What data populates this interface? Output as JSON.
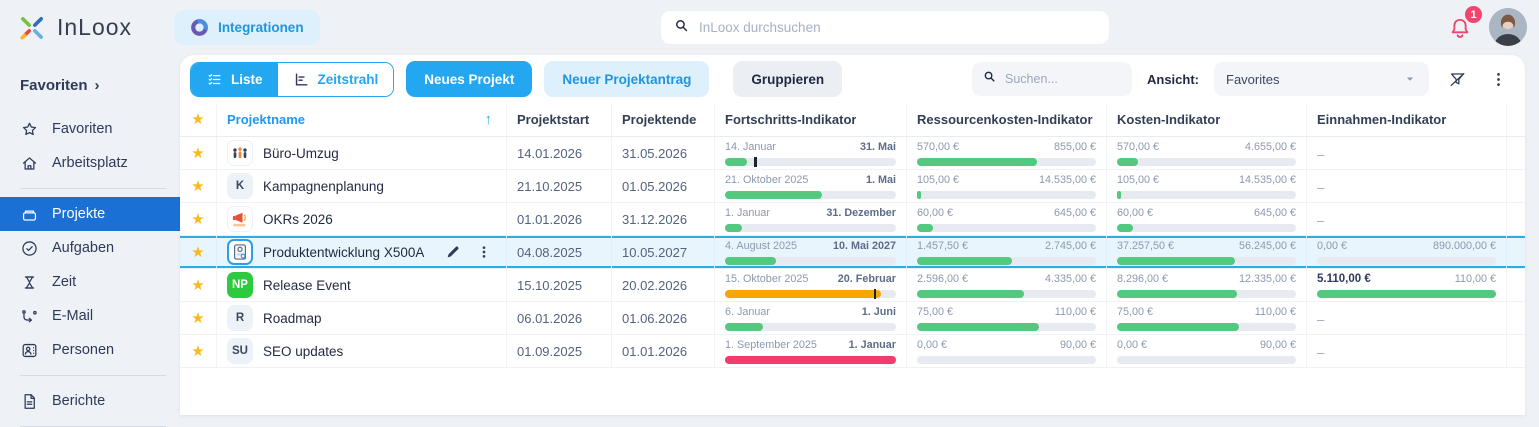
{
  "topbar": {
    "brand": "InLoox",
    "integrations_button": "Integrationen",
    "search_placeholder": "InLoox durchsuchen",
    "notifications_badge": "1"
  },
  "sidebar": {
    "section": "Favoriten",
    "section_chevron": "›",
    "items": [
      {
        "label": "Favoriten",
        "icon": "star"
      },
      {
        "label": "Arbeitsplatz",
        "icon": "home",
        "divider_after": true
      },
      {
        "label": "Projekte",
        "icon": "projects",
        "active": true
      },
      {
        "label": "Aufgaben",
        "icon": "check-circle"
      },
      {
        "label": "Zeit",
        "icon": "hourglass"
      },
      {
        "label": "E-Mail",
        "icon": "mail-flow"
      },
      {
        "label": "Personen",
        "icon": "person-card",
        "divider_after": true
      },
      {
        "label": "Berichte",
        "icon": "report",
        "divider_after": true
      }
    ]
  },
  "toolbar": {
    "views": [
      {
        "label": "Liste",
        "icon": "list",
        "active": true
      },
      {
        "label": "Zeitstrahl",
        "icon": "timeline",
        "active": false
      }
    ],
    "new_project": "Neues Projekt",
    "new_request": "Neuer Projektantrag",
    "group": "Gruppieren",
    "search_placeholder": "Suchen...",
    "view_label": "Ansicht:",
    "view_value": "Favorites"
  },
  "table": {
    "empty_value": "–",
    "headers": {
      "name": "Projektname",
      "start": "Projektstart",
      "end": "Projektende",
      "progress": "Fortschritts-Indikator",
      "resource": "Ressourcenkosten-Indikator",
      "cost": "Kosten-Indikator",
      "revenue": "Einnahmen-Indikator"
    },
    "rows": [
      {
        "name": "Büro-Umzug",
        "badge": {
          "kind": "image",
          "image": "people"
        },
        "start": "14.01.2026",
        "end": "31.05.2026",
        "progress": {
          "left": "14. Januar",
          "right": "31. Mai",
          "pct": 13,
          "color": "green",
          "marker": 17
        },
        "resource": {
          "left": "570,00 €",
          "right": "855,00 €",
          "pct": 67,
          "color": "green"
        },
        "cost": {
          "left": "570,00 €",
          "right": "4.655,00 €",
          "pct": 12,
          "color": "green"
        },
        "revenue": {
          "empty": true
        }
      },
      {
        "name": "Kampagnenplanung",
        "badge": {
          "kind": "initials",
          "text": "K",
          "bg": "light"
        },
        "start": "21.10.2025",
        "end": "01.05.2026",
        "progress": {
          "left": "21. Oktober 2025",
          "right": "1. Mai",
          "pct": 57,
          "color": "green"
        },
        "resource": {
          "left": "105,00 €",
          "right": "14.535,00 €",
          "pct": 2,
          "color": "green"
        },
        "cost": {
          "left": "105,00 €",
          "right": "14.535,00 €",
          "pct": 2,
          "color": "green"
        },
        "revenue": {
          "empty": true
        }
      },
      {
        "name": "OKRs 2026",
        "badge": {
          "kind": "image",
          "image": "megaphone"
        },
        "start": "01.01.2026",
        "end": "31.12.2026",
        "progress": {
          "left": "1. Januar",
          "right": "31. Dezember",
          "pct": 10,
          "color": "green"
        },
        "resource": {
          "left": "60,00 €",
          "right": "645,00 €",
          "pct": 9,
          "color": "green"
        },
        "cost": {
          "left": "60,00 €",
          "right": "645,00 €",
          "pct": 9,
          "color": "green"
        },
        "revenue": {
          "empty": true
        }
      },
      {
        "name": "Produktentwicklung X500A",
        "selected": true,
        "badge": {
          "kind": "image",
          "image": "device",
          "framed": true
        },
        "start": "04.08.2025",
        "end": "10.05.2027",
        "progress": {
          "left": "4. August 2025",
          "right": "10. Mai 2027",
          "pct": 30,
          "color": "green"
        },
        "resource": {
          "left": "1.457,50 €",
          "right": "2.745,00 €",
          "pct": 53,
          "color": "green"
        },
        "cost": {
          "left": "37.257,50 €",
          "right": "56.245,00 €",
          "pct": 66,
          "color": "green"
        },
        "revenue": {
          "left": "0,00 €",
          "right": "890.000,00 €",
          "pct": 0,
          "color": "green"
        }
      },
      {
        "name": "Release Event",
        "badge": {
          "kind": "initials",
          "text": "NP",
          "bg": "green"
        },
        "start": "15.10.2025",
        "end": "20.02.2026",
        "progress": {
          "left": "15. Oktober 2025",
          "right": "20. Februar",
          "pct": 91,
          "color": "orange",
          "marker": 87
        },
        "resource": {
          "left": "2.596,00 €",
          "right": "4.335,00 €",
          "pct": 60,
          "color": "green"
        },
        "cost": {
          "left": "8.296,00 €",
          "right": "12.335,00 €",
          "pct": 67,
          "color": "green"
        },
        "revenue": {
          "left": "5.110,00 €",
          "right": "110,00 €",
          "pct": 100,
          "color": "green",
          "left_bold": true
        }
      },
      {
        "name": "Roadmap",
        "badge": {
          "kind": "initials",
          "text": "R",
          "bg": "light"
        },
        "start": "06.01.2026",
        "end": "01.06.2026",
        "progress": {
          "left": "6. Januar",
          "right": "1. Juni",
          "pct": 22,
          "color": "green"
        },
        "resource": {
          "left": "75,00 €",
          "right": "110,00 €",
          "pct": 68,
          "color": "green"
        },
        "cost": {
          "left": "75,00 €",
          "right": "110,00 €",
          "pct": 68,
          "color": "green"
        },
        "revenue": {
          "empty": true
        }
      },
      {
        "name": "SEO updates",
        "badge": {
          "kind": "initials",
          "text": "SU",
          "bg": "light"
        },
        "start": "01.09.2025",
        "end": "01.01.2026",
        "progress": {
          "left": "1. September 2025",
          "right": "1. Januar",
          "pct": 100,
          "color": "red"
        },
        "resource": {
          "left": "0,00 €",
          "right": "90,00 €",
          "pct": 0,
          "color": "green"
        },
        "cost": {
          "left": "0,00 €",
          "right": "90,00 €",
          "pct": 0,
          "color": "green"
        },
        "revenue": {
          "empty": true
        }
      }
    ]
  },
  "colors": {
    "green": "#52c97e",
    "orange": "#f7a600",
    "red": "#f23c6c",
    "accent": "#22a7f0",
    "selection": "#1a70d4"
  }
}
